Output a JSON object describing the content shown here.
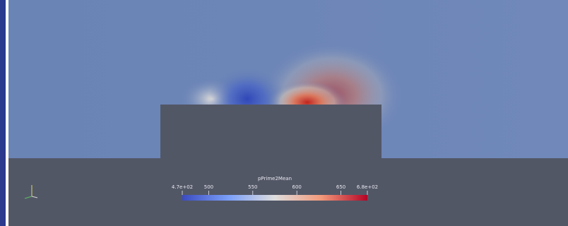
{
  "colorbar": {
    "title": "pPrime2Mean",
    "range": [
      470,
      680
    ],
    "ticks": [
      {
        "value": 470,
        "label": "4.7e+02"
      },
      500,
      550,
      600,
      650,
      {
        "value": 680,
        "label": "6.8e+02"
      }
    ]
  }
}
